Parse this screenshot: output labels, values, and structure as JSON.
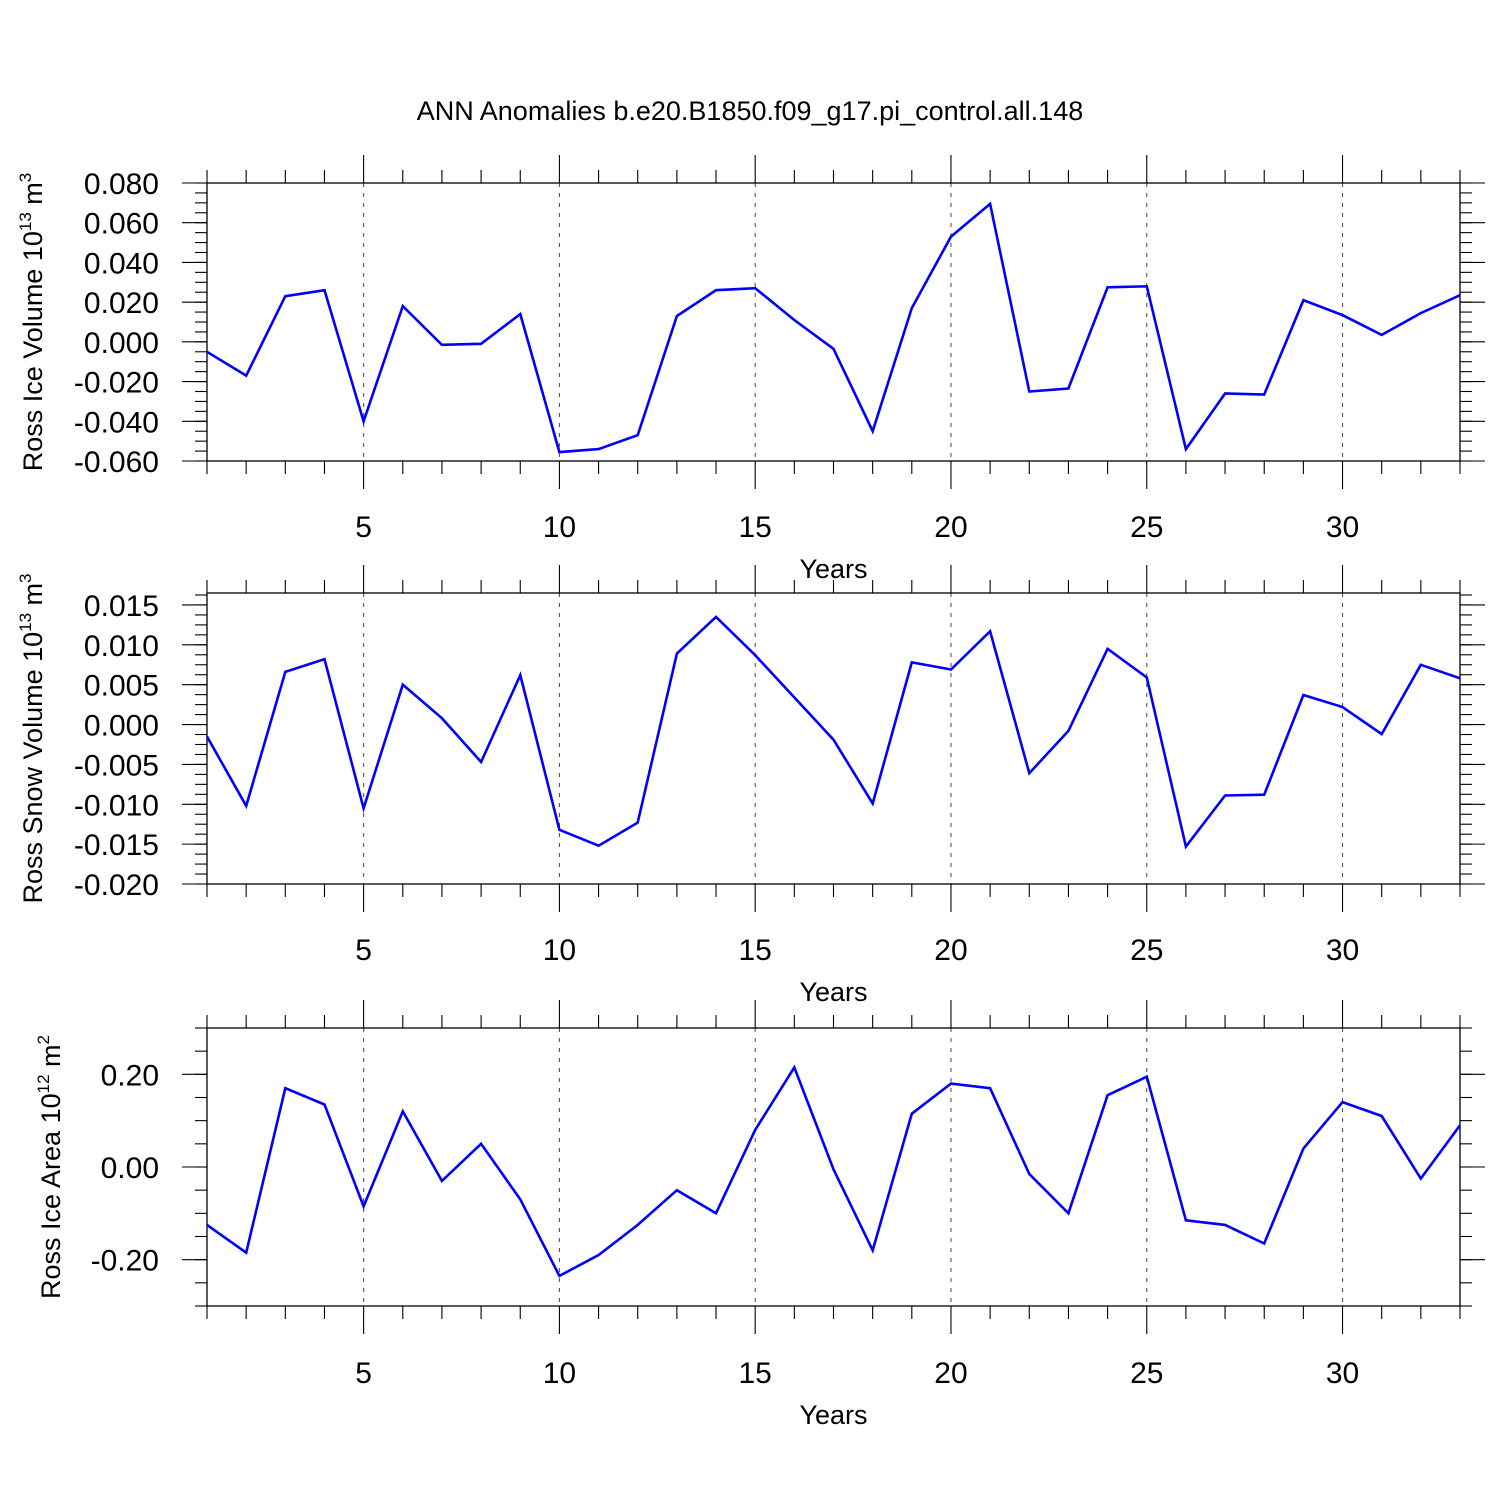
{
  "title": "ANN Anomalies b.e20.B1850.f09_g17.pi_control.all.148",
  "series_color": "#0000ff",
  "chart_data": [
    {
      "type": "line",
      "ylabel_main": "Ross Ice Volume 10",
      "ylabel_exp": "13",
      "ylabel_unit": " m",
      "ylabel_unit_exp": "3",
      "xlabel": "Years",
      "xlim": [
        1,
        33
      ],
      "ylim": [
        -0.06,
        0.08
      ],
      "xticks": [
        5,
        10,
        15,
        20,
        25,
        30
      ],
      "xtick_labels": [
        "5",
        "10",
        "15",
        "20",
        "25",
        "30"
      ],
      "yticks": [
        -0.06,
        -0.04,
        -0.02,
        0.0,
        0.02,
        0.04,
        0.06,
        0.08
      ],
      "ytick_labels": [
        "-0.060",
        "-0.040",
        "-0.020",
        "0.000",
        "0.020",
        "0.040",
        "0.060",
        "0.080"
      ],
      "yminor_step": 0.005,
      "x": [
        1,
        2,
        3,
        4,
        5,
        6,
        7,
        8,
        9,
        10,
        11,
        12,
        13,
        14,
        15,
        16,
        17,
        18,
        19,
        20,
        21,
        22,
        23,
        24,
        25,
        26,
        27,
        28,
        29,
        30,
        31,
        32,
        33
      ],
      "y": [
        -0.005,
        -0.017,
        0.023,
        0.026,
        -0.04,
        0.018,
        -0.0015,
        -0.001,
        0.014,
        -0.0555,
        -0.054,
        -0.047,
        0.013,
        0.026,
        0.027,
        0.011,
        -0.0035,
        -0.045,
        0.017,
        0.053,
        0.0695,
        -0.025,
        -0.0235,
        0.0275,
        0.028,
        -0.054,
        -0.026,
        -0.0265,
        0.021,
        0.0135,
        0.0035,
        0.0145,
        0.0235
      ]
    },
    {
      "type": "line",
      "ylabel_main": "Ross Snow Volume 10",
      "ylabel_exp": "13",
      "ylabel_unit": " m",
      "ylabel_unit_exp": "3",
      "xlabel": "Years",
      "xlim": [
        1,
        33
      ],
      "ylim": [
        -0.02,
        0.0165
      ],
      "xticks": [
        5,
        10,
        15,
        20,
        25,
        30
      ],
      "xtick_labels": [
        "5",
        "10",
        "15",
        "20",
        "25",
        "30"
      ],
      "yticks": [
        -0.02,
        -0.015,
        -0.01,
        -0.005,
        0.0,
        0.005,
        0.01,
        0.015
      ],
      "ytick_labels": [
        "-0.020",
        "-0.015",
        "-0.010",
        "-0.005",
        "0.000",
        "0.005",
        "0.010",
        "0.015"
      ],
      "yminor_step": 0.00125,
      "x": [
        1,
        2,
        3,
        4,
        5,
        6,
        7,
        8,
        9,
        10,
        11,
        12,
        13,
        14,
        15,
        16,
        17,
        18,
        19,
        20,
        21,
        22,
        23,
        24,
        25,
        26,
        27,
        28,
        29,
        30,
        31,
        32,
        33
      ],
      "y": [
        -0.0015,
        -0.0102,
        0.0066,
        0.0082,
        -0.0105,
        0.005,
        0.0008,
        -0.0047,
        0.0062,
        -0.0132,
        -0.0152,
        -0.0123,
        0.0089,
        0.0135,
        0.0087,
        0.0034,
        -0.0019,
        -0.0099,
        0.0078,
        0.0069,
        0.0117,
        -0.0061,
        -0.0008,
        0.0095,
        0.0059,
        -0.0153,
        -0.0089,
        -0.0088,
        0.0037,
        0.0022,
        -0.0012,
        0.0075,
        0.0058
      ]
    },
    {
      "type": "line",
      "ylabel_main": "Ross Ice Area 10",
      "ylabel_exp": "12",
      "ylabel_unit": " m",
      "ylabel_unit_exp": "2",
      "xlabel": "Years",
      "xlim": [
        1,
        33
      ],
      "ylim": [
        -0.3,
        0.3
      ],
      "xticks": [
        5,
        10,
        15,
        20,
        25,
        30
      ],
      "xtick_labels": [
        "5",
        "10",
        "15",
        "20",
        "25",
        "30"
      ],
      "yticks": [
        -0.2,
        0.0,
        0.2
      ],
      "ytick_labels": [
        "-0.20",
        "0.00",
        "0.20"
      ],
      "yminor_step": 0.05,
      "x": [
        1,
        2,
        3,
        4,
        5,
        6,
        7,
        8,
        9,
        10,
        11,
        12,
        13,
        14,
        15,
        16,
        17,
        18,
        19,
        20,
        21,
        22,
        23,
        24,
        25,
        26,
        27,
        28,
        29,
        30,
        31,
        32,
        33
      ],
      "y": [
        -0.125,
        -0.185,
        0.17,
        0.135,
        -0.085,
        0.12,
        -0.03,
        0.05,
        -0.07,
        -0.235,
        -0.19,
        -0.125,
        -0.05,
        -0.1,
        0.08,
        0.215,
        -0.005,
        -0.18,
        0.115,
        0.18,
        0.17,
        -0.015,
        -0.1,
        0.155,
        0.195,
        -0.115,
        -0.125,
        -0.165,
        0.04,
        0.14,
        0.11,
        -0.025,
        0.09
      ]
    }
  ]
}
